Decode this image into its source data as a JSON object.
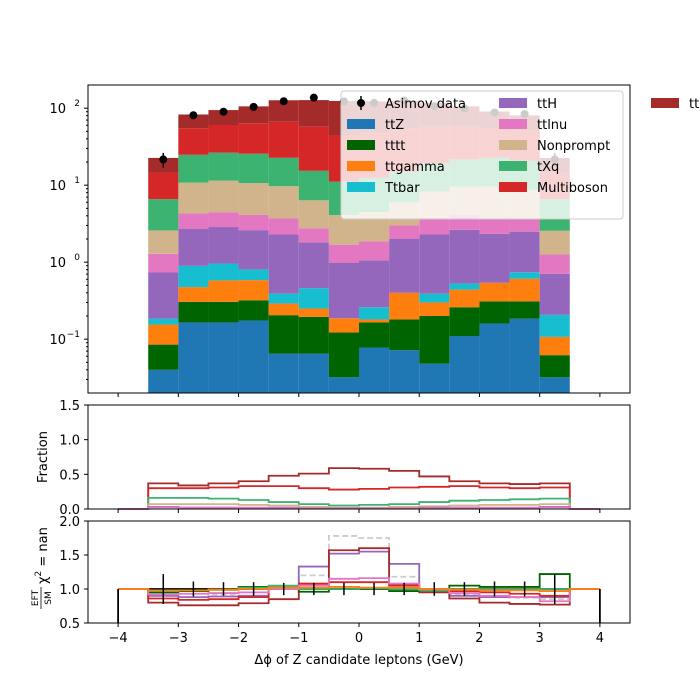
{
  "chart_data": [
    {
      "type": "stacked-step-histogram",
      "yscale": "log",
      "ylim": [
        0.02,
        200
      ],
      "xlim": [
        -4.5,
        4.5
      ],
      "yticks": [
        {
          "value": 0.1,
          "label": "10"
        },
        {
          "value": 1,
          "label": "10"
        },
        {
          "value": 10,
          "label": "10"
        },
        {
          "value": 100,
          "label": "10"
        }
      ],
      "ytick_exponents": [
        "−1",
        "0",
        "1",
        "2"
      ],
      "bin_edges": [
        -3.5,
        -3.0,
        -2.5,
        -2.0,
        -1.5,
        -1.0,
        -0.5,
        0.0,
        0.5,
        1.0,
        1.5,
        2.0,
        2.5,
        3.0,
        3.5
      ],
      "series": [
        {
          "name": "ttZ",
          "color": "#1f77b4",
          "values": [
            0.04,
            0.165,
            0.165,
            0.175,
            0.065,
            0.065,
            0.032,
            0.078,
            0.072,
            0.048,
            0.11,
            0.16,
            0.185,
            0.032
          ]
        },
        {
          "name": "tttt",
          "color": "#006400",
          "values": [
            0.045,
            0.14,
            0.14,
            0.145,
            0.14,
            0.13,
            0.09,
            0.087,
            0.108,
            0.152,
            0.15,
            0.15,
            0.125,
            0.03
          ]
        },
        {
          "name": "ttgamma",
          "color": "#ff7f0e",
          "values": [
            0.07,
            0.17,
            0.275,
            0.265,
            0.085,
            0.055,
            0.065,
            0.015,
            0.22,
            0.1,
            0.18,
            0.23,
            0.3,
            0.045
          ]
        },
        {
          "name": "Ttbar",
          "color": "#17becf",
          "values": [
            0.03,
            0.42,
            0.38,
            0.22,
            0.1,
            0.21,
            0.0,
            0.08,
            0.0,
            0.09,
            0.09,
            0.0,
            0.13,
            0.1
          ]
        },
        {
          "name": "ttH",
          "color": "#9467bd",
          "values": [
            0.55,
            1.8,
            1.9,
            1.8,
            1.9,
            1.35,
            0.8,
            0.8,
            1.6,
            1.9,
            2.1,
            1.8,
            1.75,
            0.5
          ]
        },
        {
          "name": "ttlnu",
          "color": "#e377c2",
          "values": [
            0.55,
            1.6,
            1.6,
            1.5,
            1.4,
            0.95,
            0.7,
            0.8,
            1.0,
            1.5,
            1.5,
            1.3,
            1.2,
            0.55
          ]
        },
        {
          "name": "Nonprompt",
          "color": "#d2b48c",
          "values": [
            1.3,
            6.5,
            7.0,
            6.5,
            6.0,
            3.6,
            2.4,
            2.6,
            3.0,
            4.5,
            5.5,
            6.0,
            5.0,
            1.3
          ]
        },
        {
          "name": "tXq",
          "color": "#3cb371",
          "values": [
            4.0,
            14,
            15,
            15,
            13,
            9,
            7,
            8,
            9,
            11,
            12,
            13,
            12,
            4.0
          ]
        },
        {
          "name": "Multiboson",
          "color": "#d62728",
          "values": [
            8,
            30,
            34,
            38,
            44,
            42,
            33,
            35,
            40,
            38,
            36,
            32,
            30,
            8
          ]
        },
        {
          "name": "ttll",
          "color": "#a52a2a",
          "values": [
            8,
            28,
            34,
            42,
            60,
            70,
            80,
            75,
            70,
            60,
            48,
            36,
            30,
            8
          ]
        }
      ],
      "data_series": {
        "name": "Asimov data",
        "x": [
          -3.25,
          -2.75,
          -2.25,
          -1.75,
          -1.25,
          -0.75,
          -0.25,
          0.25,
          0.75,
          1.25,
          1.75,
          2.25,
          2.75,
          3.25
        ],
        "y": [
          21.6,
          81,
          90,
          104,
          123,
          137,
          123,
          117,
          126,
          106,
          99,
          88,
          84,
          21.6
        ],
        "color": "#000000"
      },
      "legend_position": "upper-right",
      "legend_columns": 2
    },
    {
      "type": "step",
      "ylabel": "Fraction",
      "ylim": [
        0,
        1.5
      ],
      "yticks": [
        0.0,
        0.5,
        1.0,
        1.5
      ],
      "bin_edges": [
        -4.0,
        -3.5,
        -3.0,
        -2.5,
        -2.0,
        -1.5,
        -1.0,
        -0.5,
        0.0,
        0.5,
        1.0,
        1.5,
        2.0,
        2.5,
        3.0,
        3.5,
        4.0
      ],
      "series": [
        {
          "name": "ttll",
          "color": "#a52a2a",
          "values": [
            0,
            0.37,
            0.34,
            0.37,
            0.4,
            0.48,
            0.51,
            0.59,
            0.58,
            0.55,
            0.47,
            0.4,
            0.37,
            0.36,
            0.37,
            0
          ]
        },
        {
          "name": "Multiboson",
          "color": "#d62728",
          "values": [
            0,
            0.3,
            0.3,
            0.31,
            0.33,
            0.33,
            0.3,
            0.28,
            0.29,
            0.31,
            0.32,
            0.33,
            0.31,
            0.3,
            0.31,
            0
          ]
        },
        {
          "name": "tXq",
          "color": "#3cb371",
          "values": [
            0,
            0.16,
            0.16,
            0.15,
            0.13,
            0.1,
            0.07,
            0.05,
            0.06,
            0.07,
            0.1,
            0.12,
            0.13,
            0.14,
            0.15,
            0
          ]
        },
        {
          "name": "Nonprompt",
          "color": "#d2b48c",
          "values": [
            0,
            0.07,
            0.07,
            0.07,
            0.06,
            0.05,
            0.03,
            0.02,
            0.02,
            0.03,
            0.04,
            0.05,
            0.06,
            0.06,
            0.07,
            0
          ]
        },
        {
          "name": "ttH",
          "color": "#9467bd",
          "values": [
            0,
            0.03,
            0.02,
            0.02,
            0.02,
            0.02,
            0.01,
            0.01,
            0.01,
            0.01,
            0.02,
            0.02,
            0.02,
            0.02,
            0.03,
            0
          ]
        },
        {
          "name": "ttlnu",
          "color": "#e377c2",
          "values": [
            0,
            0.025,
            0.02,
            0.02,
            0.015,
            0.012,
            0.008,
            0.006,
            0.007,
            0.009,
            0.013,
            0.015,
            0.015,
            0.015,
            0.025,
            0
          ]
        }
      ]
    },
    {
      "type": "step",
      "ylabel_top": "EFT",
      "ylabel_bottom": "SM",
      "ylabel_suffix": "χ",
      "ylabel_chi": "2",
      "ylabel_nan": " = nan",
      "ylim": [
        0.5,
        2.0
      ],
      "yticks": [
        0.5,
        1.0,
        1.5,
        2.0
      ],
      "xlabel": "Δϕ of Z candidate leptons (GeV)",
      "xticks": [
        -4,
        -3,
        -2,
        -1,
        0,
        1,
        2,
        3,
        4
      ],
      "xtick_labels": [
        "−4",
        "−3",
        "−2",
        "−1",
        "0",
        "1",
        "2",
        "3",
        "4"
      ],
      "bin_edges": [
        -4.0,
        -3.5,
        -3.0,
        -2.5,
        -2.0,
        -1.5,
        -1.0,
        -0.5,
        0.0,
        0.5,
        1.0,
        1.5,
        2.0,
        2.5,
        3.0,
        3.5,
        4.0
      ],
      "series": [
        {
          "color": "#000000",
          "dashed": false,
          "values": [
            1.0,
            1.0,
            1.0,
            1.0,
            1.0,
            1.0,
            1.0,
            1.0,
            1.0,
            1.0,
            1.0,
            1.0,
            1.0,
            1.0,
            1.0,
            1.0
          ]
        },
        {
          "color": "#cccccc",
          "dashed": true,
          "values": [
            1.0,
            0.95,
            0.93,
            0.92,
            0.95,
            1.0,
            1.2,
            1.78,
            1.75,
            1.18,
            1.0,
            0.92,
            0.88,
            0.87,
            0.85,
            1.0
          ]
        },
        {
          "color": "#9467bd",
          "dashed": false,
          "values": [
            1.0,
            0.9,
            0.88,
            0.89,
            0.9,
            1.0,
            1.33,
            1.52,
            1.55,
            1.37,
            1.0,
            0.9,
            0.88,
            0.88,
            0.88,
            1.0
          ]
        },
        {
          "color": "#a52a2a",
          "dashed": false,
          "values": [
            1.0,
            0.8,
            0.76,
            0.76,
            0.79,
            0.85,
            1.05,
            1.57,
            1.6,
            1.07,
            0.95,
            0.86,
            0.8,
            0.78,
            0.77,
            1.0
          ]
        },
        {
          "color": "#d62728",
          "dashed": false,
          "values": [
            1.0,
            0.86,
            0.84,
            0.85,
            0.88,
            1.0,
            1.08,
            1.1,
            1.1,
            1.05,
            1.0,
            0.97,
            0.95,
            0.93,
            0.9,
            1.0
          ]
        },
        {
          "color": "#006400",
          "dashed": false,
          "values": [
            1.0,
            0.95,
            0.97,
            0.99,
            1.03,
            1.02,
            0.96,
            1.0,
            1.0,
            0.97,
            0.98,
            1.05,
            1.03,
            1.03,
            1.22,
            1.0
          ]
        },
        {
          "color": "#3cb371",
          "dashed": false,
          "values": [
            1.0,
            0.97,
            0.98,
            0.99,
            1.02,
            1.05,
            1.0,
            1.0,
            1.01,
            1.0,
            0.98,
            1.0,
            1.0,
            1.0,
            1.0,
            1.0
          ]
        },
        {
          "color": "#e377c2",
          "dashed": false,
          "values": [
            1.0,
            0.92,
            0.93,
            0.94,
            0.95,
            1.0,
            1.05,
            1.15,
            1.16,
            1.08,
            1.0,
            0.94,
            0.9,
            0.88,
            0.82,
            1.0
          ]
        },
        {
          "color": "#ff7f0e",
          "dashed": false,
          "values": [
            1.0,
            0.98,
            0.98,
            0.99,
            1.0,
            1.02,
            1.02,
            1.03,
            1.02,
            1.02,
            1.0,
            0.99,
            0.98,
            0.98,
            0.97,
            1.0
          ]
        }
      ],
      "errorbars": {
        "x": [
          -3.25,
          -2.75,
          -2.25,
          -1.75,
          -1.25,
          -0.75,
          -0.25,
          0.25,
          0.75,
          1.25,
          1.75,
          2.25,
          2.75,
          3.25
        ],
        "y": [
          1.0,
          1.0,
          1.0,
          1.0,
          1.0,
          1.0,
          1.0,
          1.0,
          1.0,
          1.0,
          1.0,
          1.0,
          1.0,
          1.0
        ],
        "err": [
          0.22,
          0.11,
          0.1,
          0.1,
          0.09,
          0.09,
          0.09,
          0.09,
          0.09,
          0.1,
          0.1,
          0.11,
          0.11,
          0.22
        ]
      }
    }
  ]
}
